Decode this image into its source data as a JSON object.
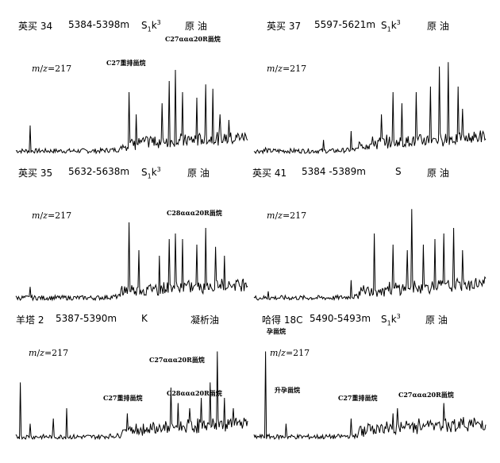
{
  "chart_data": [
    {
      "type": "line",
      "well": "英买 34",
      "depth": "5384-5398m",
      "formation": "S1k3",
      "fluid": "原 油",
      "mz_label": "m/z=217",
      "annotations": [
        "C27重排甾烷",
        "C27ααα20R甾烷"
      ]
    },
    {
      "type": "line",
      "well": "英买 37",
      "depth": "5597-5621m",
      "formation": "S1k3",
      "fluid": "原 油",
      "mz_label": "m/z=217",
      "annotations": []
    },
    {
      "type": "line",
      "well": "英买 35",
      "depth": "5632-5638m",
      "formation": "S1k3",
      "fluid": "原 油",
      "mz_label": "m/z=217",
      "annotations": [
        "C28ααα20R甾烷"
      ]
    },
    {
      "type": "line",
      "well": "英买 41",
      "depth": "5384 -5389m",
      "formation": "S",
      "fluid": "原 油",
      "mz_label": "m/z=217",
      "annotations": []
    },
    {
      "type": "line",
      "well": "羊塔 2",
      "depth": "5387-5390m",
      "formation": "K",
      "fluid": "凝析油",
      "mz_label": "m/z=217",
      "annotations": [
        "C27ααα20R甾烷",
        "C27重排甾烷",
        "C28ααα20R甾烷"
      ]
    },
    {
      "type": "line",
      "well": "哈得 18C",
      "depth": "5490-5493m",
      "formation": "S1k3",
      "fluid": "原 油",
      "mz_label": "m/z=217",
      "annotations": [
        "孕甾烷",
        "升孕甾烷",
        "C27重排甾烷",
        "C27ααα20R甾烷"
      ]
    }
  ]
}
